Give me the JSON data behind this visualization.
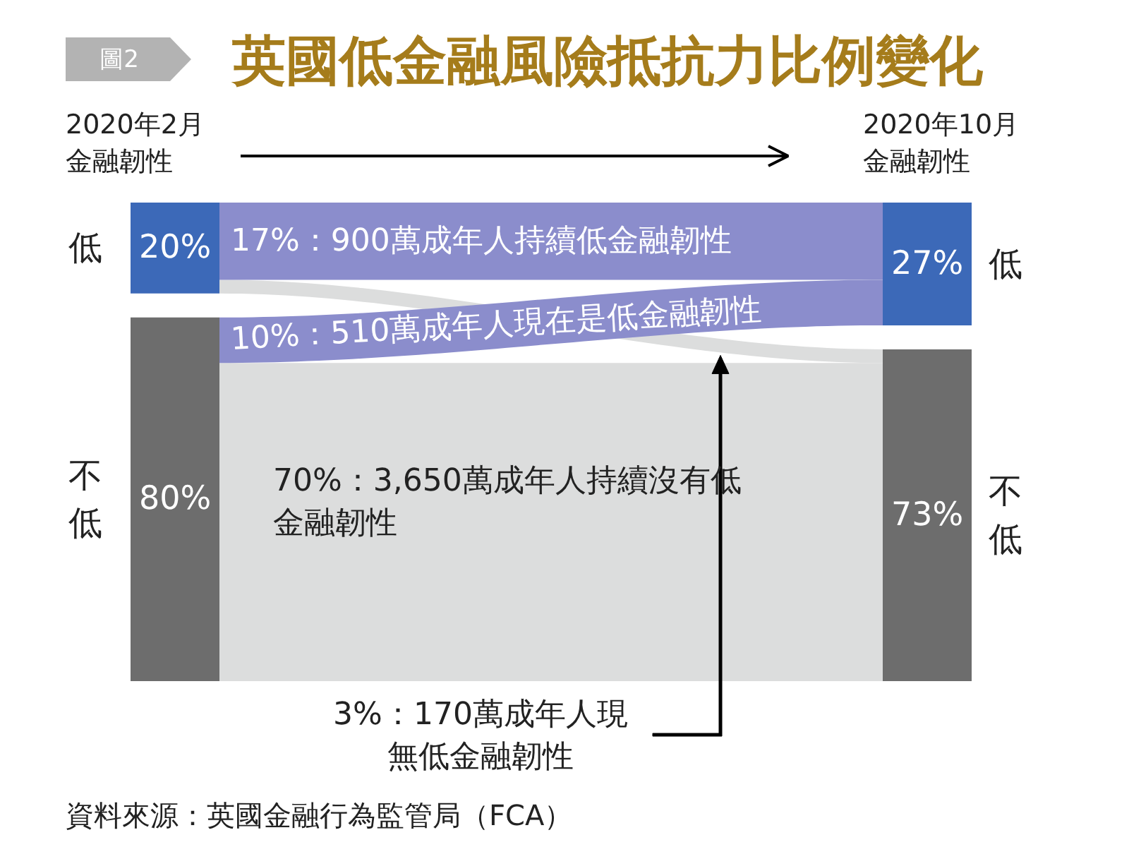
{
  "chart_data": {
    "type": "other",
    "title": "英國低金融風險抵抗力比例變化",
    "categories": [
      "低",
      "不低"
    ],
    "series": [
      {
        "name": "2020年2月金融韌性",
        "colors": [
          "#3c69b8",
          "#6d6d6d"
        ],
        "values": [
          20,
          80
        ],
        "value_labels": [
          "20%",
          "80%"
        ]
      },
      {
        "name": "2020年10月金融韌性",
        "colors": [
          "#3c69b8",
          "#6d6d6d"
        ],
        "values": [
          27,
          73
        ],
        "value_labels": [
          "27%",
          "73%"
        ]
      },
      {
        "colors": [
          "#8b8dcc",
          "#dcdddd"
        ],
        "values": [
          17,
          3
        ],
        "value_labels": [
          "17%：900萬成年人持續低金融韌性",
          "3%：170萬成年人現無低金融韌性"
        ]
      },
      {
        "colors": [
          "#8b8dcc",
          "#dcdddd"
        ],
        "values": [
          10,
          70
        ],
        "value_labels": [
          "10%：510萬成年人現在是低金融韌性",
          "70%：3,650萬成年人持續沒有低金融韌性"
        ]
      }
    ],
    "annotations": [
      "圖2",
      "資料來源：英國金融行為監管局（FCA）"
    ]
  }
}
